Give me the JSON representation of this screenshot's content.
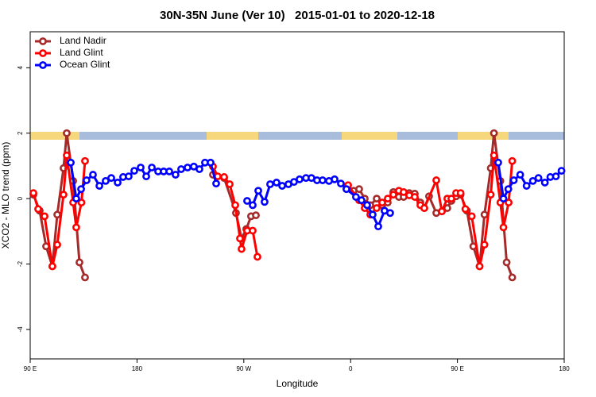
{
  "chart_data": {
    "type": "line",
    "title": "30N-35N June (Ver 10)   2015-01-01 to 2020-12-18",
    "x_label": "Longitude",
    "y_label": "XCO2 - MLO trend (ppm)",
    "xlim": [
      90,
      540
    ],
    "ylim": [
      -4.9,
      5.1
    ],
    "xticks": [
      {
        "value": 90,
        "label": "90 E"
      },
      180,
      {
        "value": 270,
        "label": "90 W"
      },
      {
        "value": 360,
        "label": "0"
      },
      {
        "value": 450,
        "label": "90 E"
      },
      {
        "value": 540,
        "label": "180"
      }
    ],
    "yticks": [
      -4,
      -2,
      0,
      2,
      4
    ],
    "legend": "top-left",
    "series": [
      {
        "name": "Land Nadir",
        "color": "#a52a2a",
        "x": [
          92.7,
          98.0,
          103.4,
          108.7,
          112.8,
          118.1,
          120.8,
          126.2,
          131.5,
          136.2,
          null,
          244.0,
          253.4,
          263.4,
          268.1,
          272.1,
          276.1,
          280.2,
          null,
          356.5,
          362.5,
          367.2,
          371.9,
          376.6,
          382.0,
          386.6,
          391.3,
          396.0,
          400.7,
          404.7,
          409.4,
          414.1,
          418.8,
          422.1,
          426.1,
          432.2,
          436.9,
          441.5,
          444.9,
          448.9,
          452.7,
          458.0,
          463.4,
          468.7,
          472.8,
          478.1,
          480.8,
          486.2,
          491.5,
          496.2
        ],
        "values": [
          0.12,
          -0.37,
          -1.46,
          -2.07,
          -0.49,
          0.93,
          2.0,
          0.54,
          -1.95,
          -2.41,
          null,
          0.73,
          0.63,
          -0.44,
          -1.22,
          -0.93,
          -0.54,
          -0.51,
          null,
          0.29,
          0.24,
          0.29,
          0,
          -0.2,
          0,
          -0.2,
          -0.12,
          0.2,
          0.05,
          0.05,
          0.17,
          0.15,
          -0.12,
          -0.29,
          0.07,
          -0.44,
          -0.39,
          -0.29,
          -0.07,
          0.07,
          0.12,
          -0.37,
          -1.46,
          -2.07,
          -0.49,
          0.93,
          2.0,
          0.54,
          -1.95,
          -2.41
        ]
      },
      {
        "name": "Land Glint",
        "color": "#ff0000",
        "x": [
          92.7,
          96.7,
          102.1,
          108.7,
          112.8,
          118.1,
          120.8,
          126.2,
          128.8,
          133.2,
          136.2,
          null,
          244.0,
          248.0,
          253.4,
          258.1,
          262.8,
          266.8,
          268.1,
          272.8,
          277.5,
          281.5,
          null,
          357.9,
          367.2,
          371.9,
          376.6,
          382.0,
          386.6,
          391.3,
          396.0,
          400.7,
          404.7,
          409.4,
          414.1,
          418.8,
          422.1,
          432.2,
          436.9,
          441.5,
          444.9,
          448.9,
          452.7,
          456.7,
          462.1,
          468.7,
          472.8,
          478.1,
          480.8,
          486.2,
          488.8,
          493.2,
          496.2
        ],
        "values": [
          0.17,
          -0.32,
          -0.54,
          -2.07,
          -1.41,
          0.12,
          1.32,
          -0.12,
          -0.88,
          -0.12,
          1.15,
          null,
          0.98,
          0.68,
          0.66,
          0.44,
          -0.2,
          -1.22,
          -1.54,
          -0.98,
          -0.98,
          -1.78,
          null,
          0.41,
          -0.05,
          -0.29,
          -0.49,
          -0.29,
          -0.12,
          0,
          0.12,
          0.24,
          0.2,
          0.1,
          0.05,
          -0.2,
          -0.29,
          0.56,
          -0.39,
          0,
          0,
          0.17,
          0.17,
          -0.32,
          -0.54,
          -2.07,
          -1.41,
          0.12,
          1.32,
          -0.12,
          -0.88,
          -0.12,
          1.15
        ]
      },
      {
        "name": "Ocean Glint",
        "color": "#0000ff",
        "x": [
          124.2,
          128.8,
          132.9,
          137.5,
          142.9,
          148.3,
          153.6,
          158.3,
          163.7,
          168.3,
          173.0,
          177.7,
          183.1,
          187.8,
          192.5,
          197.8,
          202.5,
          207.2,
          212.5,
          217.2,
          222.6,
          227.9,
          232.6,
          237.3,
          242.0,
          246.7,
          null,
          272.8,
          277.5,
          282.2,
          287.5,
          292.2,
          297.6,
          302.3,
          307.6,
          312.3,
          317.0,
          322.4,
          327.0,
          331.7,
          336.4,
          341.8,
          346.5,
          351.8,
          356.5,
          364.5,
          369.2,
          373.9,
          378.6,
          383.3,
          388.6,
          393.3,
          null,
          484.4,
          488.8,
          492.9,
          497.5,
          502.9,
          508.3,
          513.6,
          518.3,
          523.7,
          528.3,
          533.0,
          537.7
        ],
        "values": [
          1.1,
          0,
          0.29,
          0.56,
          0.73,
          0.39,
          0.54,
          0.63,
          0.49,
          0.66,
          0.68,
          0.85,
          0.95,
          0.68,
          0.95,
          0.83,
          0.83,
          0.83,
          0.73,
          0.9,
          0.95,
          0.98,
          0.9,
          1.1,
          1.1,
          0.46,
          null,
          -0.07,
          -0.2,
          0.24,
          -0.1,
          0.44,
          0.49,
          0.39,
          0.44,
          0.51,
          0.59,
          0.63,
          0.63,
          0.56,
          0.56,
          0.54,
          0.59,
          0.46,
          0.29,
          0.05,
          -0.05,
          -0.2,
          -0.49,
          -0.85,
          -0.37,
          -0.44,
          null,
          1.1,
          0,
          0.29,
          0.56,
          0.73,
          0.39,
          0.54,
          0.63,
          0.49,
          0.66,
          0.68,
          0.85
        ]
      }
    ]
  }
}
